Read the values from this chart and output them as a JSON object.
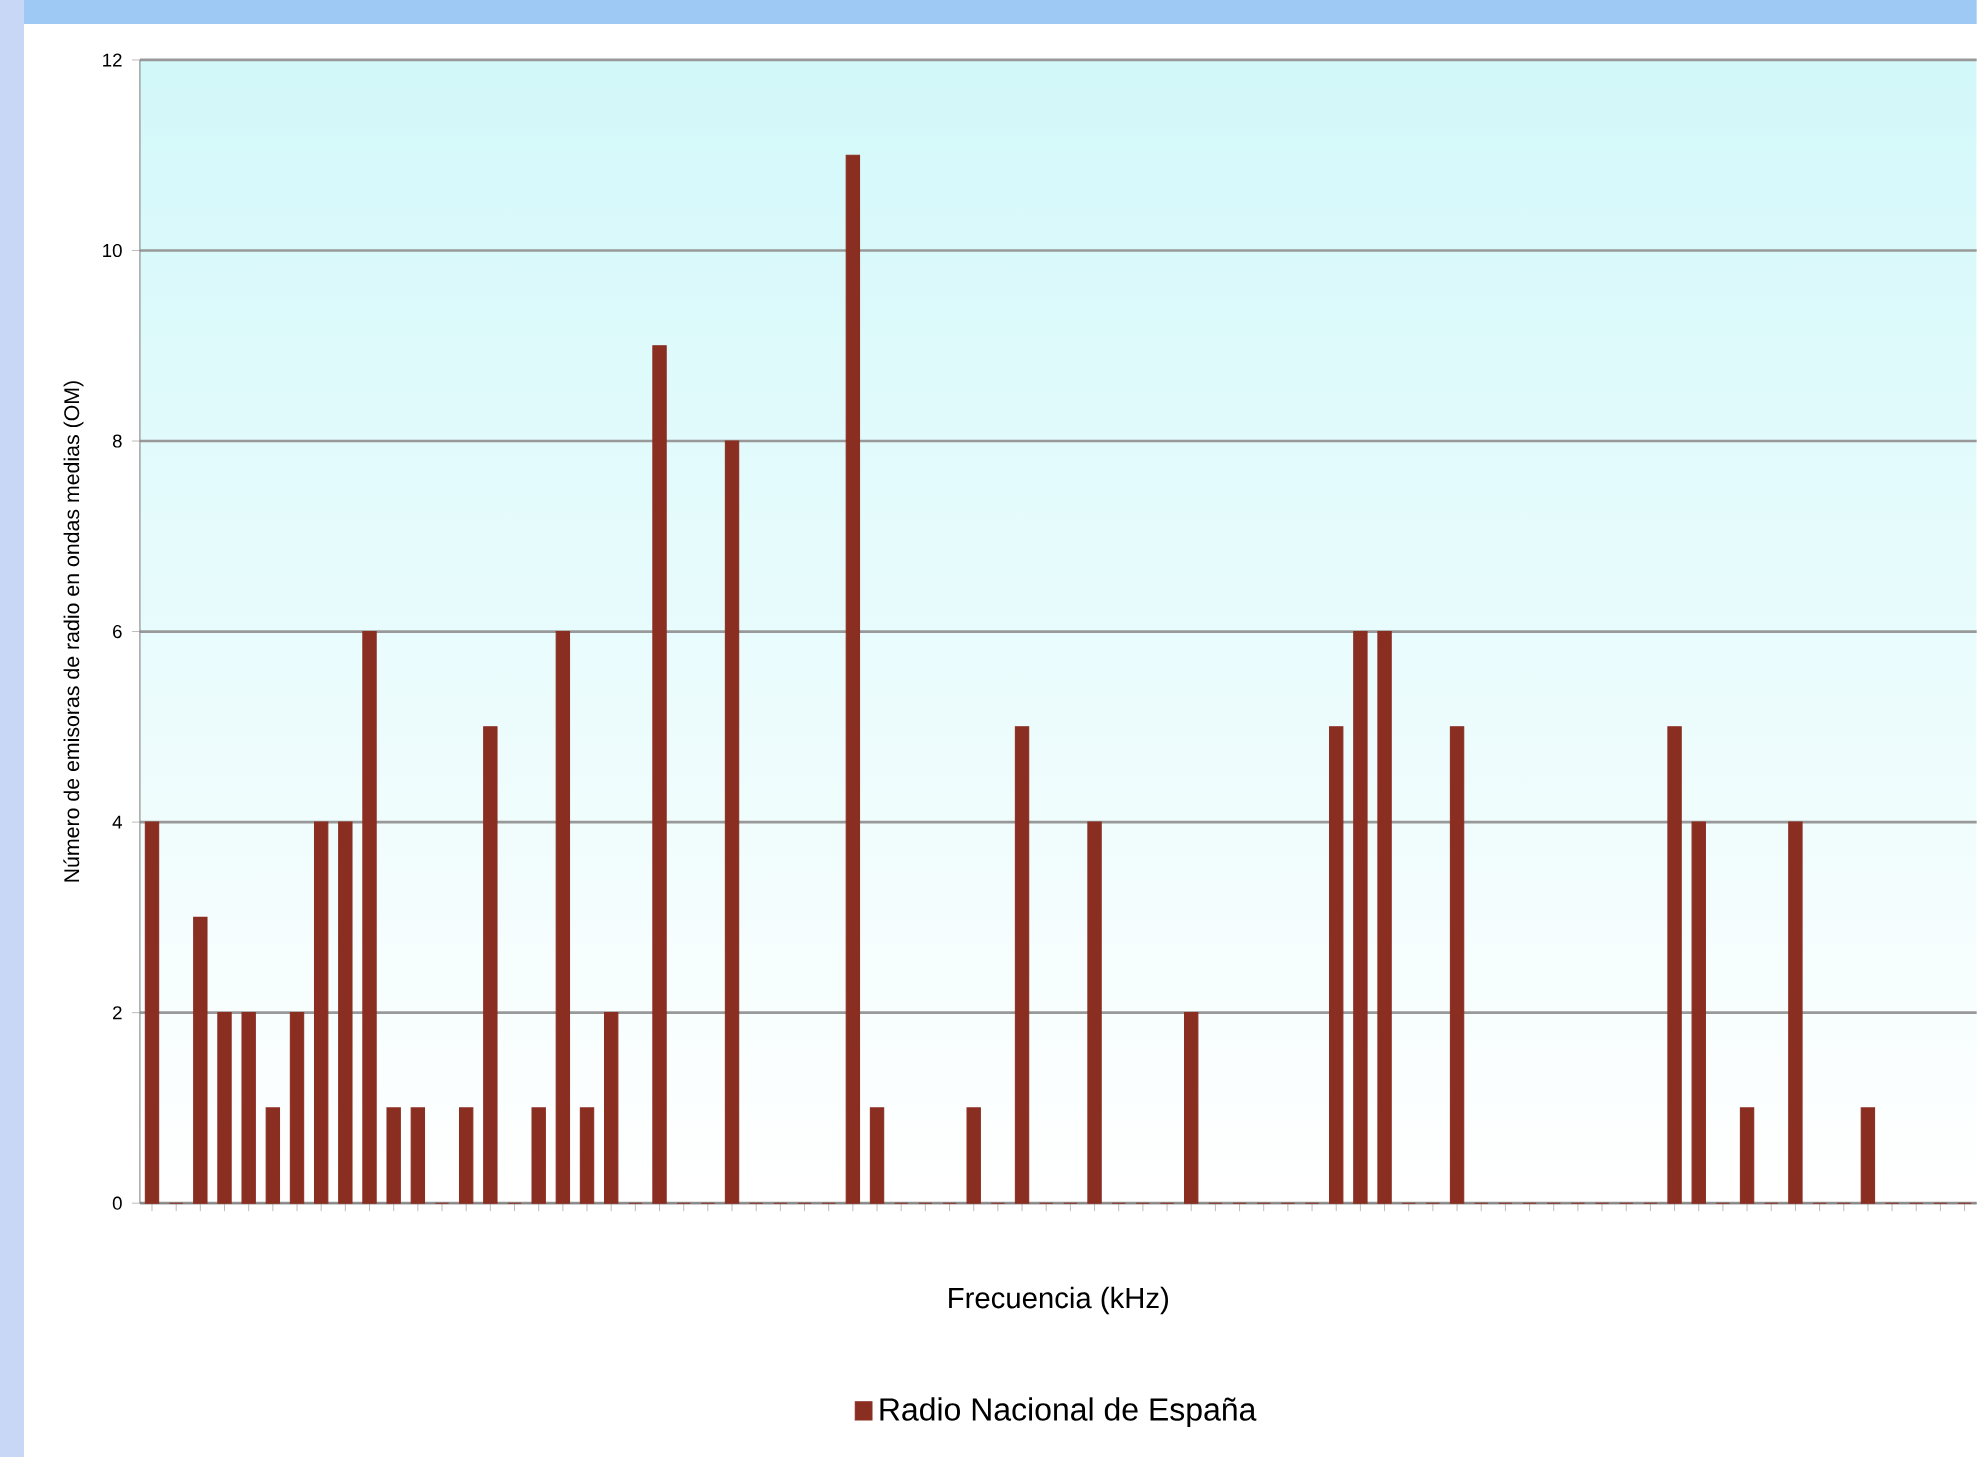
{
  "chart_data": {
    "type": "bar",
    "xlabel": "Frecuencia (kHz)",
    "ylabel": "Número de emisoras de radio en ondas medias (OM)",
    "categories": [
      null,
      null,
      null,
      null,
      null,
      null,
      null,
      null,
      null,
      null,
      null,
      null,
      null,
      null,
      null,
      null,
      null,
      null,
      null,
      null,
      null,
      null,
      null,
      null,
      null,
      null,
      null,
      null,
      null,
      null,
      null,
      null,
      null,
      null,
      null,
      null,
      null,
      null,
      null,
      null,
      null,
      null,
      null,
      null,
      null,
      null,
      null,
      null,
      null,
      null,
      null,
      null,
      null,
      null,
      null,
      null,
      null,
      null,
      null,
      null,
      null,
      null,
      null,
      null,
      null,
      null,
      null,
      null,
      null,
      null,
      null,
      null,
      null,
      null,
      null,
      null
    ],
    "series": [
      {
        "name": "Radio Nacional de España",
        "color": "#8b2e22",
        "values": [
          4,
          0,
          3,
          2,
          2,
          1,
          2,
          4,
          4,
          6,
          1,
          1,
          0,
          1,
          5,
          0,
          1,
          6,
          1,
          2,
          0,
          9,
          0,
          0,
          8,
          0,
          0,
          0,
          0,
          11,
          1,
          0,
          0,
          0,
          1,
          0,
          5,
          0,
          0,
          4,
          0,
          0,
          0,
          2,
          0,
          0,
          0,
          0,
          0,
          5,
          6,
          6,
          0,
          0,
          5,
          0,
          0,
          0,
          0,
          0,
          0,
          0,
          0,
          5,
          4,
          0,
          1,
          0,
          4,
          0,
          0,
          1,
          0,
          0,
          0,
          0
        ]
      }
    ],
    "ylim": [
      0,
      12
    ],
    "yticks": [
      0,
      2,
      4,
      6,
      8,
      10,
      12
    ],
    "grid": "y",
    "legend": "bottom"
  }
}
